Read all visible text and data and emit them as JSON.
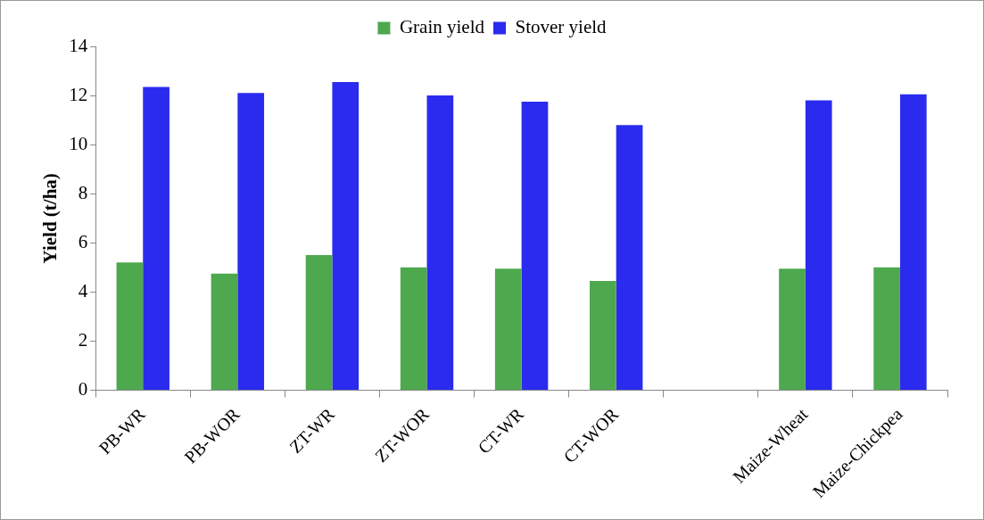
{
  "chart_data": {
    "type": "bar",
    "categories": [
      "PB-WR",
      "PB-WOR",
      "ZT-WR",
      "ZT-WOR",
      "CT-WR",
      "CT-WOR",
      null,
      "Maize-Wheat",
      "Maize-Chickpea"
    ],
    "series": [
      {
        "name": "Grain yield",
        "color": "#4ea84e",
        "values": [
          5.2,
          4.75,
          5.5,
          5.0,
          4.95,
          4.45,
          null,
          4.95,
          5.0
        ]
      },
      {
        "name": "Stover yield",
        "color": "#2b2bef",
        "values": [
          12.35,
          12.1,
          12.55,
          12.0,
          11.75,
          10.8,
          null,
          11.8,
          12.05
        ]
      }
    ],
    "ylabel": "Yield (t/ha)",
    "ylim": [
      0,
      14
    ],
    "yticks": [
      0,
      2,
      4,
      6,
      8,
      10,
      12,
      14
    ],
    "grid": false,
    "legend": "top"
  }
}
